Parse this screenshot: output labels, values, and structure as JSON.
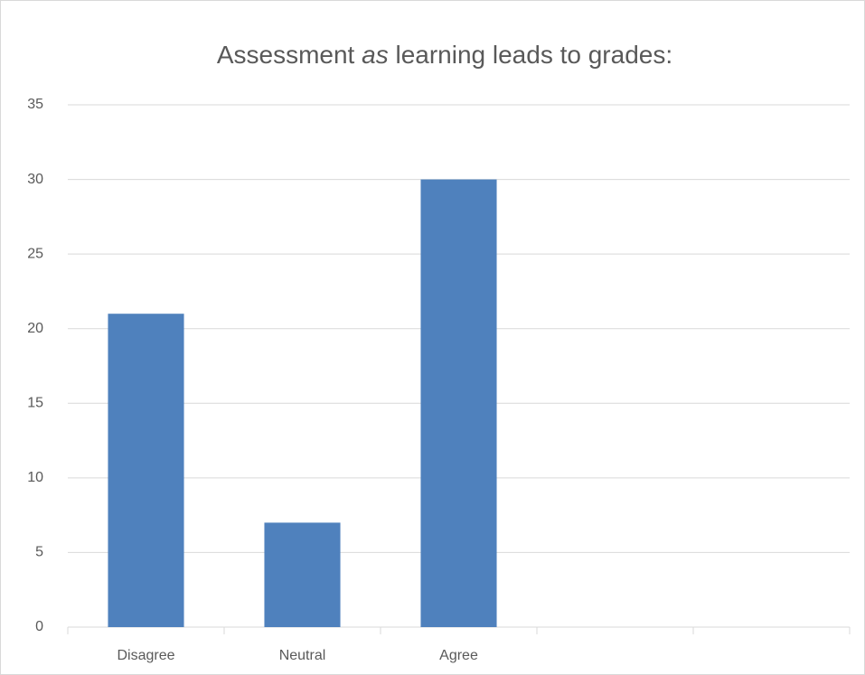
{
  "chart_data": {
    "type": "bar",
    "title": [
      "Assessment ",
      "as",
      " learning leads to grades:"
    ],
    "categories": [
      "Disagree",
      "Neutral",
      "Agree",
      null,
      null
    ],
    "values": [
      21,
      7,
      30,
      null,
      null
    ],
    "color": "#4f81bd",
    "ylim": [
      0,
      35
    ],
    "yticks": [
      0,
      5,
      10,
      15,
      20,
      25,
      30,
      35
    ],
    "grid": true
  }
}
